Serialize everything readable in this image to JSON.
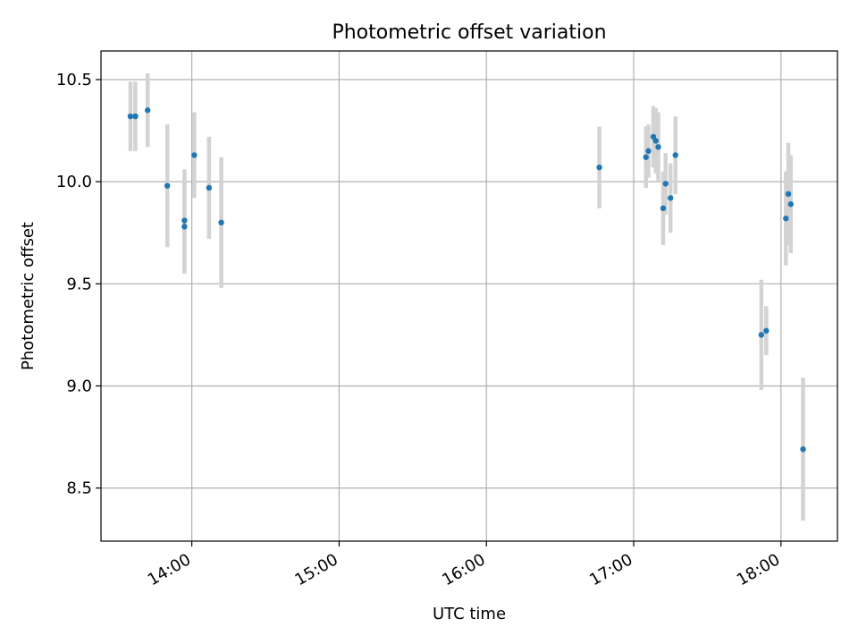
{
  "chart_data": {
    "type": "scatter",
    "title": "Photometric offset variation",
    "xlabel": "UTC time",
    "ylabel": "Photometric offset",
    "x_unit": "time",
    "xlim": [
      "13:23",
      "18:23"
    ],
    "ylim": [
      8.24,
      10.64
    ],
    "x_ticks": [
      "14:00",
      "15:00",
      "16:00",
      "17:00",
      "18:00"
    ],
    "y_ticks": [
      "8.5",
      "9.0",
      "9.5",
      "10.0",
      "10.5"
    ],
    "grid": true,
    "error_bar_color": "#d3d3d3",
    "point_color": "#1f77b4",
    "points": [
      {
        "x": "13:35",
        "y": 10.32,
        "err": 0.17
      },
      {
        "x": "13:37",
        "y": 10.32,
        "err": 0.17
      },
      {
        "x": "13:42",
        "y": 10.35,
        "err": 0.18
      },
      {
        "x": "13:50",
        "y": 9.98,
        "err": 0.3
      },
      {
        "x": "13:57",
        "y": 9.81,
        "err": 0.25
      },
      {
        "x": "13:57",
        "y": 9.78,
        "err": 0.23
      },
      {
        "x": "14:01",
        "y": 10.13,
        "err": 0.21
      },
      {
        "x": "14:07",
        "y": 9.97,
        "err": 0.25
      },
      {
        "x": "14:12",
        "y": 9.8,
        "err": 0.32
      },
      {
        "x": "16:46",
        "y": 10.07,
        "err": 0.2
      },
      {
        "x": "17:05",
        "y": 10.12,
        "err": 0.15
      },
      {
        "x": "17:06",
        "y": 10.15,
        "err": 0.13
      },
      {
        "x": "17:08",
        "y": 10.22,
        "err": 0.15
      },
      {
        "x": "17:09",
        "y": 10.2,
        "err": 0.16
      },
      {
        "x": "17:10",
        "y": 10.17,
        "err": 0.17
      },
      {
        "x": "17:12",
        "y": 9.87,
        "err": 0.18
      },
      {
        "x": "17:13",
        "y": 9.99,
        "err": 0.15
      },
      {
        "x": "17:15",
        "y": 9.92,
        "err": 0.17
      },
      {
        "x": "17:17",
        "y": 10.13,
        "err": 0.19
      },
      {
        "x": "17:52",
        "y": 9.25,
        "err": 0.27
      },
      {
        "x": "17:54",
        "y": 9.27,
        "err": 0.12
      },
      {
        "x": "18:02",
        "y": 9.82,
        "err": 0.23
      },
      {
        "x": "18:03",
        "y": 9.94,
        "err": 0.25
      },
      {
        "x": "18:04",
        "y": 9.89,
        "err": 0.24
      },
      {
        "x": "18:09",
        "y": 8.69,
        "err": 0.35
      }
    ]
  }
}
